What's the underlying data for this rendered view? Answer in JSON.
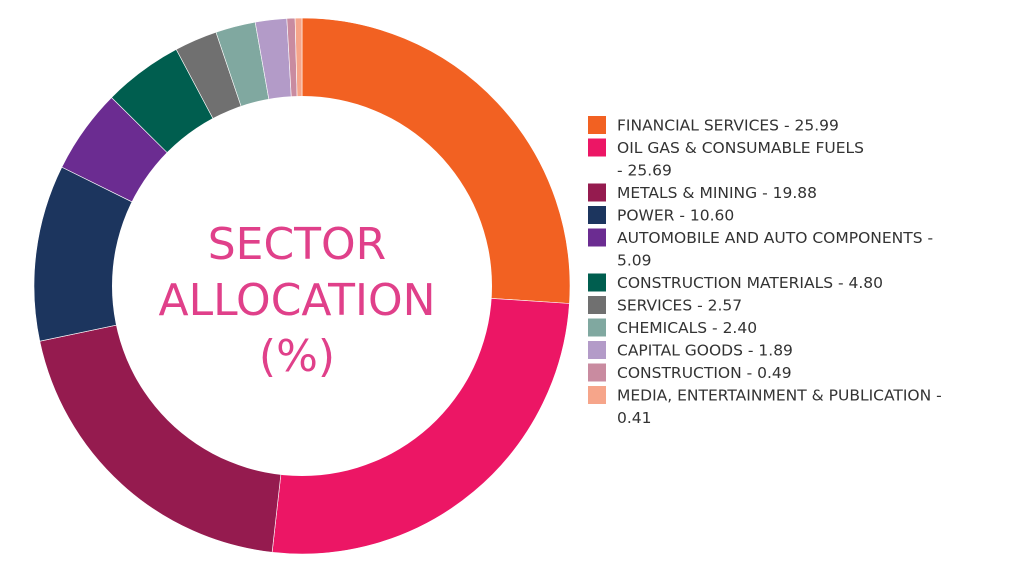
{
  "chart_data": {
    "type": "pie",
    "title": "SECTOR ALLOCATION (%)",
    "center_lines": [
      "SECTOR",
      "ALLOCATION",
      "(%)"
    ],
    "start_angle_deg": 0,
    "categories": [
      "FINANCIAL SERVICES",
      "OIL GAS & CONSUMABLE FUELS",
      "METALS & MINING",
      "POWER",
      "AUTOMOBILE AND AUTO COMPONENTS",
      "CONSTRUCTION MATERIALS",
      "SERVICES",
      "CHEMICALS",
      "CAPITAL GOODS",
      "CONSTRUCTION",
      "MEDIA, ENTERTAINMENT & PUBLICATION"
    ],
    "values": [
      25.99,
      25.69,
      19.88,
      10.6,
      5.09,
      4.8,
      2.57,
      2.4,
      1.89,
      0.49,
      0.41
    ],
    "colors": [
      "#f26122",
      "#ec1665",
      "#951b4f",
      "#1c355e",
      "#6b2c91",
      "#005e4f",
      "#707070",
      "#80a8a0",
      "#b39bc8",
      "#c98ba0",
      "#f6a58a"
    ],
    "legend_lines": [
      [
        "FINANCIAL SERVICES - 25.99"
      ],
      [
        "OIL GAS & CONSUMABLE FUELS",
        "- 25.69"
      ],
      [
        "METALS & MINING - 19.88"
      ],
      [
        "POWER - 10.60"
      ],
      [
        "AUTOMOBILE AND AUTO COMPONENTS -",
        "5.09"
      ],
      [
        "CONSTRUCTION MATERIALS - 4.80"
      ],
      [
        "SERVICES - 2.57"
      ],
      [
        "CHEMICALS - 2.40"
      ],
      [
        "CAPITAL GOODS - 1.89"
      ],
      [
        "CONSTRUCTION - 0.49"
      ],
      [
        "MEDIA, ENTERTAINMENT & PUBLICATION -",
        "0.41"
      ]
    ],
    "legend_position": "right",
    "center_color": "#e0408a"
  }
}
